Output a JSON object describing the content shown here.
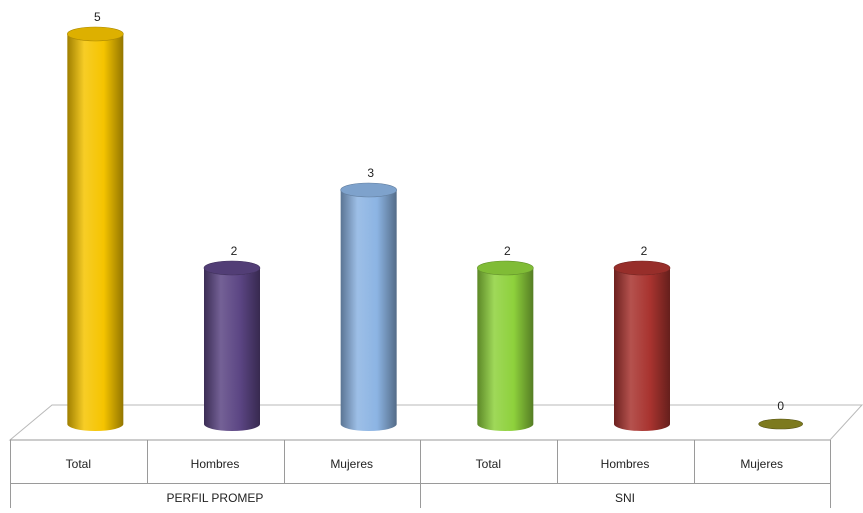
{
  "chart_data": {
    "type": "bar",
    "style": "3d-cylinder",
    "title": "",
    "xlabel": "",
    "ylabel": "",
    "ylim": [
      0,
      5
    ],
    "grid": false,
    "legend": "none",
    "groups": [
      {
        "label": "PERFIL PROMEP",
        "categories": [
          "Total",
          "Hombres",
          "Mujeres"
        ],
        "values": [
          5,
          2,
          3
        ]
      },
      {
        "label": "SNI",
        "categories": [
          "Total",
          "Hombres",
          "Mujeres"
        ],
        "values": [
          2,
          2,
          0
        ]
      }
    ],
    "bar_colors": [
      "#F5C400",
      "#5B4583",
      "#8CB4E3",
      "#8ED13C",
      "#A8332F",
      "#7D7A1E"
    ]
  }
}
